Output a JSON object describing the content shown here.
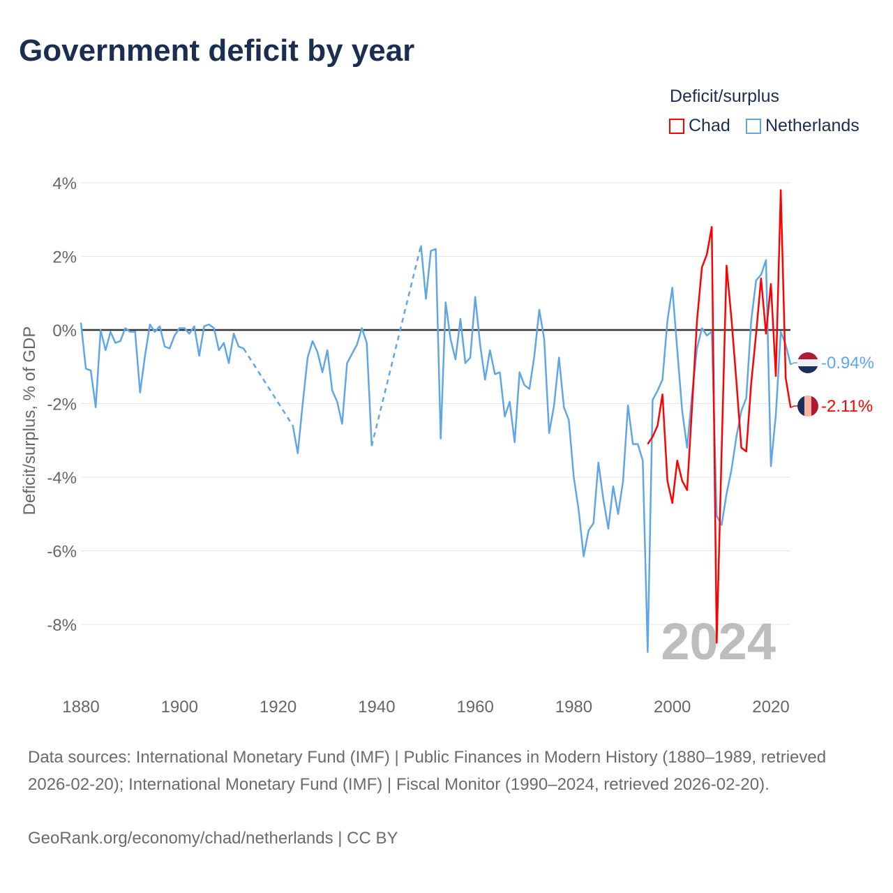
{
  "title": "Government deficit by year",
  "legend_title": "Deficit/surplus",
  "footer": {
    "sources": "Data sources: International Monetary Fund (IMF) | Public Finances in Modern History (1880–1989, retrieved 2026-02-20); International Monetary Fund (IMF) | Fiscal Monitor (1990–2024, retrieved 2026-02-20).",
    "attribution": "GeoRank.org/economy/chad/netherlands | CC BY"
  },
  "chart_data": {
    "type": "line",
    "title": "Government deficit by year",
    "xlabel": "",
    "ylabel": "Deficit/surplus, % of GDP",
    "xlim": [
      1880,
      2024
    ],
    "ylim": [
      -9.5,
      4.3
    ],
    "x_ticks": [
      1880,
      1900,
      1920,
      1940,
      1960,
      1980,
      2000,
      2020
    ],
    "x_tick_labels": [
      "1880",
      "1900",
      "1920",
      "1940",
      "1960",
      "1980",
      "2000",
      "2020"
    ],
    "y_ticks": [
      4,
      2,
      0,
      -2,
      -4,
      -6,
      -8
    ],
    "y_tick_labels": [
      "4%",
      "2%",
      "0%",
      "-2%",
      "-4%",
      "-6%",
      "-8%"
    ],
    "grid": true,
    "legend_position": "top-right",
    "year_watermark": "2024",
    "series": [
      {
        "name": "Chad",
        "color": "#ff0000",
        "end_label": "-2.11%",
        "flag_colors": [
          "#1b2f5c",
          "#f9b3a0",
          "#b0182d"
        ],
        "start_year": 1995,
        "values": [
          -3.1,
          -2.9,
          -2.6,
          -1.75,
          -4.1,
          -4.7,
          -3.55,
          -4.1,
          -4.35,
          -2.1,
          0.25,
          1.7,
          2.05,
          2.8,
          -8.5,
          -3.3,
          1.75,
          0.3,
          -1.4,
          -3.2,
          -3.3,
          -1.45,
          -0.1,
          1.4,
          -0.1,
          1.25,
          -1.25,
          3.8,
          -1.3,
          -2.11
        ]
      },
      {
        "name": "Netherlands",
        "color": "#5ea6e8",
        "end_label": "-0.94%",
        "flag_colors": [
          "#ad1d33",
          "#f0f0f0",
          "#1b2f5c"
        ],
        "start_year": 1880,
        "values": [
          0.2,
          -1.05,
          -1.1,
          -2.1,
          0,
          -0.55,
          -0.05,
          -0.35,
          -0.3,
          0.05,
          -0.05,
          -0.05,
          -1.7,
          -0.7,
          0.15,
          -0.05,
          0.1,
          -0.45,
          -0.5,
          -0.15,
          0.05,
          0.05,
          -0.1,
          0.1,
          -0.7,
          0.1,
          0.15,
          0.05,
          -0.55,
          -0.35,
          -0.9,
          -0.1,
          -0.45,
          -0.5,
          null,
          null,
          null,
          null,
          null,
          null,
          null,
          null,
          null,
          -2.6,
          -3.35,
          -2.0,
          -0.75,
          -0.3,
          -0.6,
          -1.15,
          -0.55,
          -1.65,
          -1.95,
          -2.55,
          -0.9,
          -0.65,
          -0.4,
          0.05,
          -0.35,
          -3.15,
          null,
          null,
          null,
          null,
          null,
          null,
          null,
          null,
          null,
          2.3,
          0.85,
          2.15,
          2.2,
          -2.95,
          0.75,
          -0.25,
          -0.8,
          0.3,
          -0.9,
          -0.75,
          0.9,
          -0.4,
          -1.35,
          -0.55,
          -1.2,
          -1.15,
          -2.35,
          -1.95,
          -3.05,
          -1.15,
          -1.5,
          -1.6,
          -0.7,
          0.55,
          -0.25,
          -2.8,
          -2.05,
          -0.75,
          -2.1,
          -2.45,
          -4.0,
          -4.9,
          -6.15,
          -5.45,
          -5.25,
          -3.6,
          -4.6,
          -5.4,
          -4.25,
          -5.0,
          -4.1,
          -2.05,
          -3.1,
          -3.1,
          -3.55,
          -8.75,
          -1.9,
          -1.65,
          -1.35,
          0.25,
          1.15,
          -0.55,
          -2.2,
          -3.2,
          -1.75,
          -0.5,
          0.05,
          -0.15,
          -0.05,
          -5.05,
          -5.3,
          -4.45,
          -3.8,
          -2.9,
          -2.2,
          -1.85,
          0.25,
          1.35,
          1.5,
          1.9,
          -3.7,
          -2.3,
          -0.05,
          -0.4,
          -0.94
        ]
      }
    ]
  }
}
